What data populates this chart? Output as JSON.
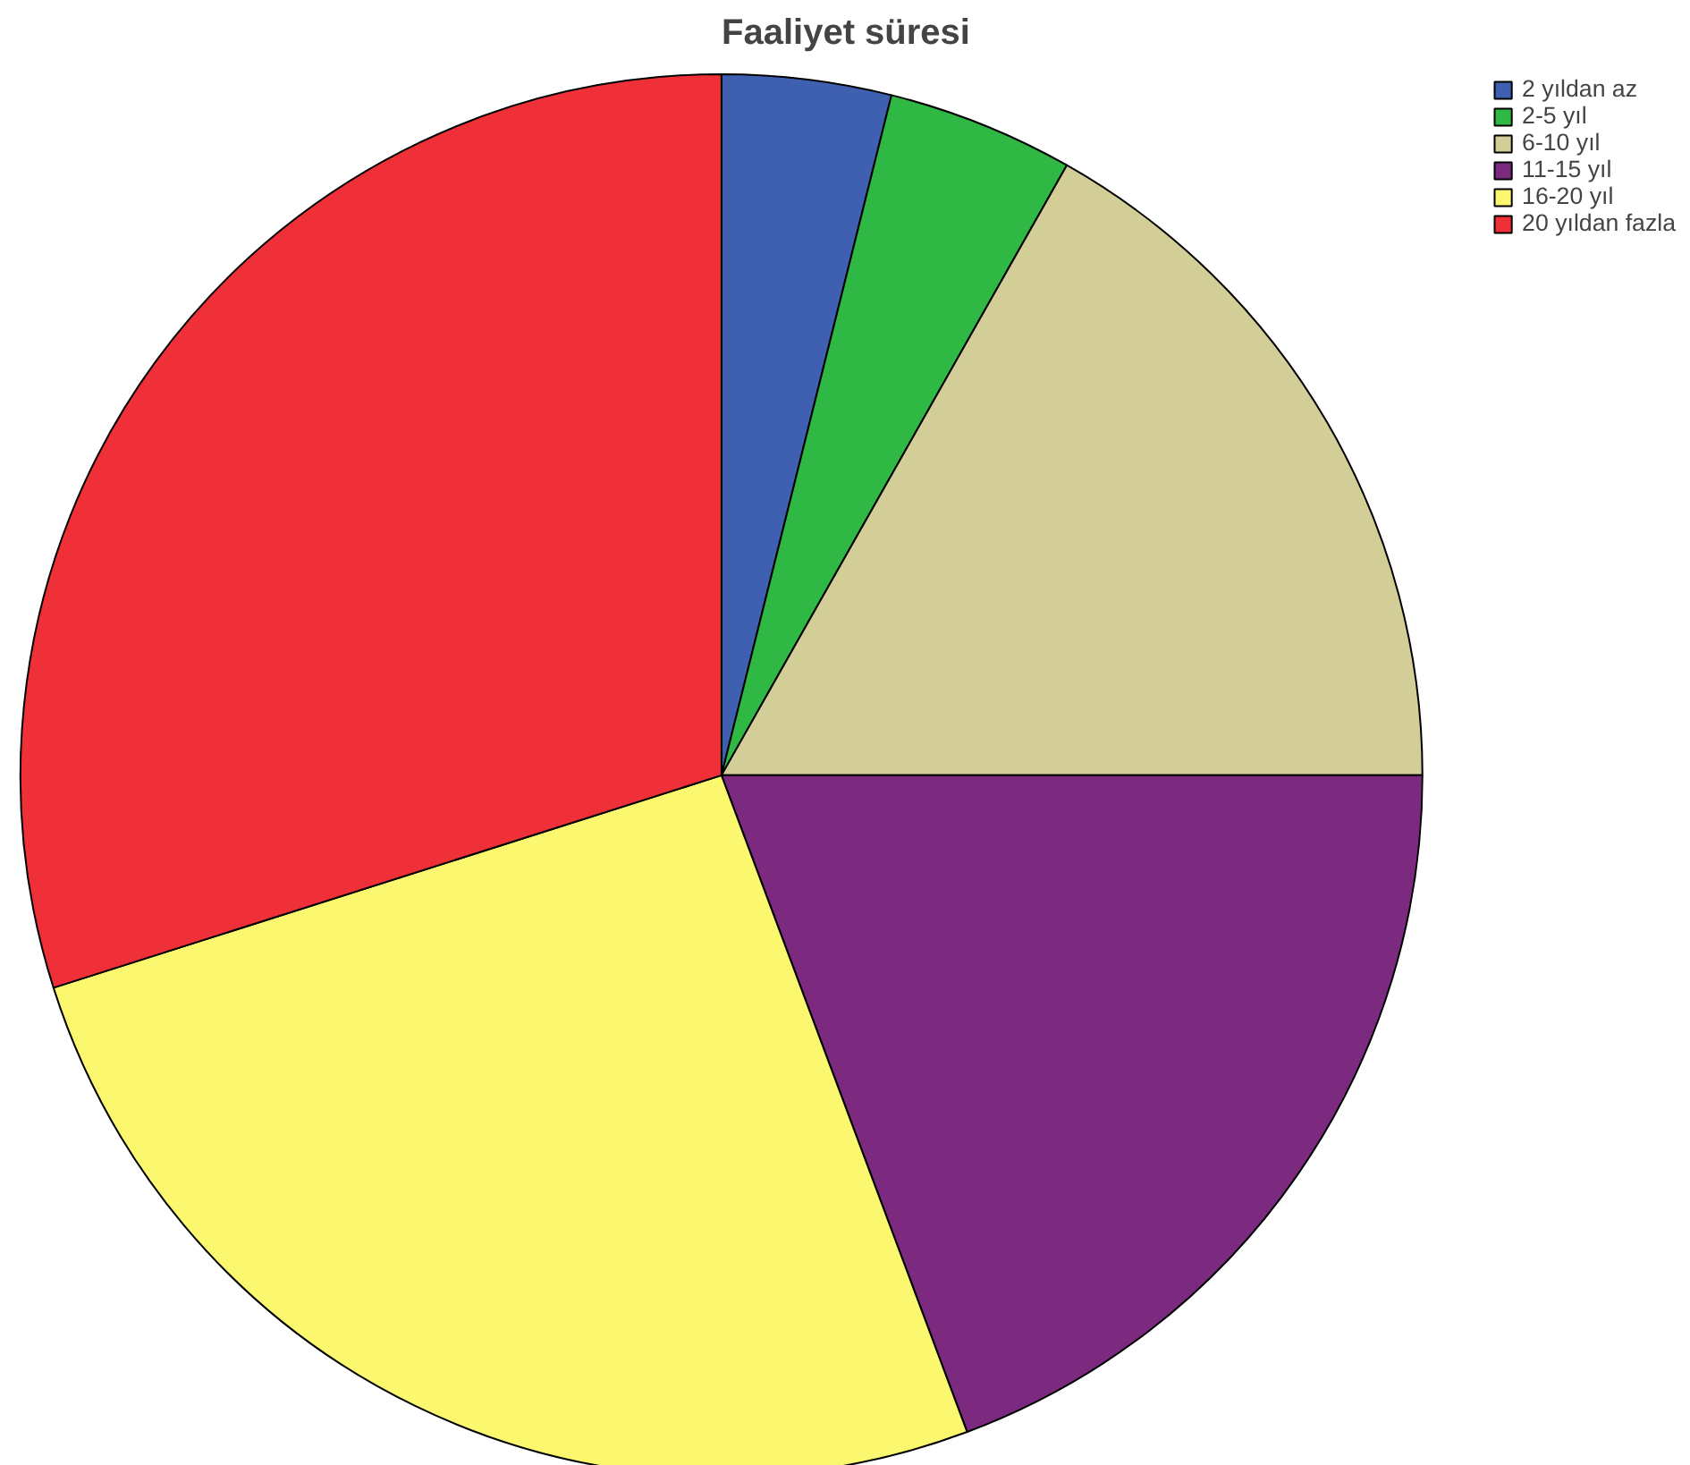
{
  "chart_data": {
    "type": "pie",
    "title": "Faaliyet süresi",
    "categories": [
      "2 yıldan az",
      "2-5 yıl",
      "6-10 yıl",
      "11-15 yıl",
      "16-20 yıl",
      "20 yıldan fazla"
    ],
    "values": [
      3.9,
      4.3,
      16.8,
      19.3,
      25.8,
      29.9
    ],
    "colors": [
      "#3f5fb0",
      "#2fb844",
      "#d3cd98",
      "#7b2a80",
      "#fbf76e",
      "#ef3038"
    ],
    "legend": "top right"
  }
}
